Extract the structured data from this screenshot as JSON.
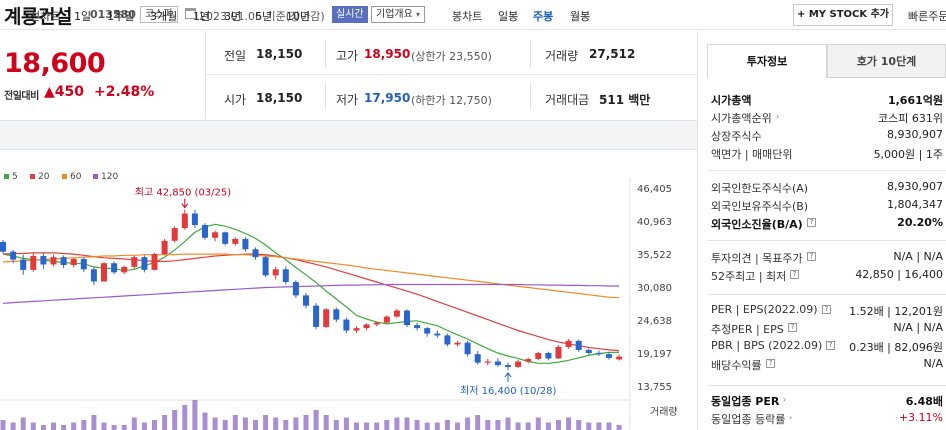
{
  "header": {
    "stock_name": "계룡건설",
    "stock_code": "013580",
    "market": "코스피",
    "date_text": "2023.01.06 기준(장마감)",
    "live_label": "실시간",
    "overview_label": "기업개요",
    "mystock_label": "MY STOCK 추가",
    "quick_link": "빠른주문"
  },
  "price": {
    "current": "18,600",
    "prev_day_label": "전일대비",
    "change_amount": "▲450",
    "change_percent": "+2.48%"
  },
  "stats": {
    "prev_close_label": "전일",
    "prev_close": "18,150",
    "high_label": "고가",
    "high": "18,950",
    "upper_limit": "(상한가 23,550)",
    "volume_label": "거래량",
    "volume": "27,512",
    "open_label": "시가",
    "open": "18,150",
    "low_label": "저가",
    "low": "17,950",
    "lower_limit": "(하한가 12,750)",
    "trade_value_label": "거래대금",
    "trade_value": "511 백만"
  },
  "toolbar": {
    "line_chart_label": "선차트",
    "line_periods": [
      "1일",
      "1주일",
      "3개월",
      "1년",
      "3년",
      "5년",
      "10년"
    ],
    "candle_chart_label": "봉차트",
    "candle_periods": [
      "일봉",
      "주봉",
      "월봉"
    ],
    "active_candle": "주봉"
  },
  "legend": [
    {
      "name": "5",
      "color": "#3dac3d"
    },
    {
      "name": "20",
      "color": "#e04040"
    },
    {
      "name": "60",
      "color": "#f08a24"
    },
    {
      "name": "120",
      "color": "#9b59c9"
    }
  ],
  "chart_data": {
    "type": "candlestick",
    "interval": "weekly",
    "y_ticks": [
      "46,405",
      "40,963",
      "35,522",
      "30,080",
      "24,638",
      "19,197",
      "13,755"
    ],
    "ylim": [
      13755,
      46405
    ],
    "high_annotation": "최고 42,850 (03/25)",
    "low_annotation": "최저 16,400 (10/28)",
    "volume_label": "거래량",
    "candles": [
      [
        37500,
        37800,
        35600,
        35900
      ],
      [
        35900,
        36200,
        34000,
        34600
      ],
      [
        34600,
        35400,
        32100,
        32900
      ],
      [
        32900,
        35600,
        32600,
        35200
      ],
      [
        35200,
        35700,
        33100,
        33800
      ],
      [
        33800,
        35400,
        33500,
        35000
      ],
      [
        35000,
        35300,
        33200,
        33700
      ],
      [
        33700,
        34900,
        33300,
        34700
      ],
      [
        34700,
        35100,
        32600,
        33000
      ],
      [
        33000,
        33300,
        30400,
        31000
      ],
      [
        31000,
        34200,
        30900,
        34000
      ],
      [
        34000,
        34300,
        32200,
        32500
      ],
      [
        32500,
        33600,
        32200,
        33400
      ],
      [
        33400,
        35200,
        33100,
        35000
      ],
      [
        35000,
        35300,
        32500,
        32900
      ],
      [
        32900,
        35700,
        32800,
        35500
      ],
      [
        35500,
        38000,
        35300,
        37700
      ],
      [
        37700,
        40100,
        37400,
        39800
      ],
      [
        39800,
        42850,
        39500,
        42200
      ],
      [
        42200,
        42800,
        39800,
        40300
      ],
      [
        40300,
        40600,
        37900,
        38200
      ],
      [
        38200,
        39400,
        37600,
        39100
      ],
      [
        39100,
        39200,
        36900,
        37200
      ],
      [
        37200,
        38300,
        36900,
        38000
      ],
      [
        38000,
        38300,
        35900,
        36300
      ],
      [
        36300,
        36600,
        34600,
        35000
      ],
      [
        35000,
        35200,
        31700,
        32000
      ],
      [
        32000,
        33400,
        31300,
        33000
      ],
      [
        33000,
        33500,
        30500,
        30900
      ],
      [
        30900,
        31200,
        28300,
        28700
      ],
      [
        28700,
        29100,
        26600,
        27000
      ],
      [
        27000,
        27400,
        23100,
        23500
      ],
      [
        23500,
        26600,
        23300,
        26400
      ],
      [
        26400,
        26700,
        24300,
        24700
      ],
      [
        24700,
        25000,
        22500,
        22900
      ],
      [
        22900,
        23600,
        22500,
        23300
      ],
      [
        23300,
        24100,
        22900,
        23900
      ],
      [
        23900,
        24400,
        23600,
        24200
      ],
      [
        24200,
        25400,
        24000,
        25200
      ],
      [
        25200,
        26500,
        25000,
        26200
      ],
      [
        26200,
        26400,
        23500,
        23800
      ],
      [
        23800,
        24200,
        22900,
        23300
      ],
      [
        23300,
        23500,
        21900,
        22400
      ],
      [
        22400,
        22900,
        21700,
        22100
      ],
      [
        22100,
        22400,
        20300,
        20600
      ],
      [
        20600,
        21200,
        20300,
        20900
      ],
      [
        20900,
        21200,
        18600,
        19000
      ],
      [
        19000,
        19500,
        17300,
        17600
      ],
      [
        17600,
        18200,
        17200,
        17800
      ],
      [
        17800,
        18300,
        16900,
        17200
      ],
      [
        17200,
        17600,
        16400,
        16900
      ],
      [
        16900,
        18100,
        16700,
        17800
      ],
      [
        17800,
        18400,
        17500,
        18200
      ],
      [
        18200,
        19400,
        18000,
        19200
      ],
      [
        19200,
        19400,
        18000,
        18300
      ],
      [
        18300,
        20500,
        18200,
        20200
      ],
      [
        20200,
        21500,
        19900,
        21200
      ],
      [
        21200,
        21400,
        19400,
        19700
      ],
      [
        19700,
        19900,
        18900,
        19200
      ],
      [
        19200,
        19600,
        18700,
        19000
      ],
      [
        19000,
        19300,
        18100,
        18400
      ],
      [
        18150,
        18950,
        17950,
        18600
      ]
    ],
    "volumes": [
      4,
      3,
      5,
      3,
      2,
      3,
      2,
      3,
      4,
      6,
      3,
      2,
      2,
      5,
      3,
      4,
      6,
      8,
      10,
      12,
      7,
      5,
      4,
      6,
      5,
      4,
      6,
      5,
      4,
      5,
      6,
      8,
      6,
      4,
      5,
      3,
      3,
      3,
      4,
      5,
      5,
      4,
      3,
      3,
      4,
      3,
      5,
      6,
      4,
      4,
      5,
      3,
      3,
      5,
      3,
      4,
      5,
      4,
      3,
      3,
      3,
      2
    ],
    "ma": {
      "5": [
        35500,
        35200,
        34800,
        34600,
        34500,
        34300,
        34100,
        34000,
        33900,
        33400,
        33200,
        33100,
        32800,
        33000,
        33600,
        34100,
        35000,
        36200,
        37600,
        39100,
        40000,
        40400,
        40100,
        39600,
        38900,
        38100,
        37000,
        35700,
        34600,
        33300,
        32100,
        30800,
        29400,
        28100,
        26800,
        25400,
        24800,
        24300,
        24000,
        24200,
        24400,
        24500,
        24100,
        23700,
        22900,
        22200,
        21500,
        20700,
        19900,
        19200,
        18700,
        18300,
        17800,
        17500,
        17500,
        17700,
        18000,
        18400,
        18800,
        19100,
        19300,
        19300
      ],
      "20": [
        35500,
        35600,
        35600,
        35700,
        35700,
        35700,
        35600,
        35500,
        35300,
        35100,
        34900,
        34800,
        34700,
        34600,
        34400,
        34300,
        34300,
        34400,
        34600,
        34800,
        35000,
        35200,
        35300,
        35400,
        35500,
        35500,
        35400,
        35200,
        34900,
        34600,
        34200,
        33800,
        33400,
        32900,
        32400,
        31900,
        31400,
        30900,
        30400,
        29900,
        29400,
        28900,
        28300,
        27700,
        27100,
        26500,
        25900,
        25300,
        24700,
        24100,
        23500,
        22900,
        22400,
        21900,
        21400,
        21000,
        20700,
        20400,
        20100,
        19900,
        19700,
        19600
      ],
      "60": [
        34200,
        34300,
        34400,
        34500,
        34600,
        34700,
        34800,
        34900,
        35000,
        35100,
        35200,
        35200,
        35300,
        35300,
        35400,
        35400,
        35400,
        35400,
        35500,
        35500,
        35500,
        35500,
        35500,
        35400,
        35400,
        35300,
        35200,
        35100,
        34900,
        34700,
        34500,
        34300,
        34100,
        33900,
        33700,
        33500,
        33200,
        33000,
        32800,
        32600,
        32400,
        32200,
        32000,
        31800,
        31600,
        31400,
        31200,
        31000,
        30800,
        30600,
        30400,
        30200,
        30000,
        29800,
        29600,
        29400,
        29200,
        29000,
        28800,
        28600,
        28400,
        28300
      ],
      "120": [
        27400,
        27500,
        27600,
        27700,
        27800,
        27900,
        28000,
        28100,
        28200,
        28300,
        28400,
        28500,
        28600,
        28700,
        28800,
        28900,
        29000,
        29100,
        29200,
        29300,
        29400,
        29500,
        29600,
        29700,
        29800,
        29900,
        30000,
        30050,
        30100,
        30150,
        30200,
        30250,
        30300,
        30350,
        30400,
        30400,
        30450,
        30450,
        30500,
        30500,
        30500,
        30500,
        30500,
        30500,
        30500,
        30500,
        30500,
        30500,
        30500,
        30500,
        30500,
        30500,
        30450,
        30450,
        30400,
        30400,
        30350,
        30350,
        30300,
        30300,
        30250,
        30250
      ]
    }
  },
  "panel": {
    "tab_invest": "투자정보",
    "tab_orderbook": "호가 10단계",
    "rows1": [
      {
        "label": "시가총액",
        "value": "1,661억원",
        "bold": true
      },
      {
        "label": "시가총액순위",
        "value": "코스피 631위"
      },
      {
        "label": "상장주식수",
        "value": "8,930,907"
      },
      {
        "label": "액면가 | 매매단위",
        "value": "5,000원 | 1주"
      }
    ],
    "rows2": [
      {
        "label": "외국인한도주식수(A)",
        "value": "8,930,907"
      },
      {
        "label": "외국인보유주식수(B)",
        "value": "1,804,347"
      },
      {
        "label": "외국인소진율(B/A)",
        "value": "20.20%",
        "bold": true
      }
    ],
    "rows3": [
      {
        "label": "투자의견 | 목표주가",
        "value": "N/A | N/A"
      },
      {
        "label": "52주최고 | 최저",
        "value": "42,850 | 16,400"
      }
    ],
    "rows4": [
      {
        "label": "PER | EPS(2022.09)",
        "value": "1.52배 | 12,201원"
      },
      {
        "label": "추정PER | EPS",
        "value": "N/A | N/A"
      },
      {
        "label": "PBR | BPS (2022.09)",
        "value": "0.23배 | 82,096원"
      },
      {
        "label": "배당수익률",
        "value": "N/A"
      }
    ],
    "rows5": [
      {
        "label": "동일업종 PER",
        "value": "6.48배",
        "bold": true
      },
      {
        "label": "동일업종 등락률",
        "value": "+3.11%",
        "red": true
      }
    ]
  }
}
